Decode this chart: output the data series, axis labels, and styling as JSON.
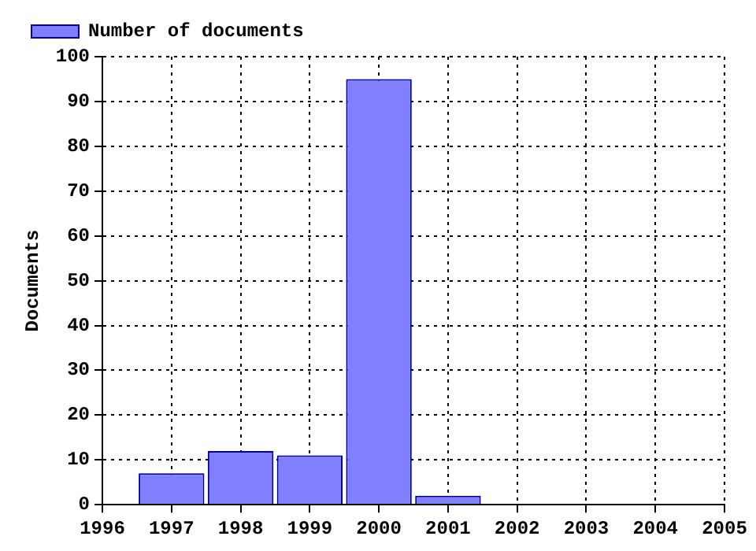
{
  "chart_data": {
    "type": "bar",
    "ylabel": "Documents",
    "x": [
      1997,
      1998,
      1999,
      2000,
      2001
    ],
    "series": [
      {
        "name": "Number of documents",
        "color": "#8080ff",
        "values": [
          7,
          12,
          11,
          95,
          2
        ]
      }
    ],
    "xlim": [
      1996,
      2005
    ],
    "xticks": [
      1996,
      1997,
      1998,
      1999,
      2000,
      2001,
      2002,
      2003,
      2004,
      2005
    ],
    "ylim": [
      0,
      100
    ],
    "yticks": [
      0,
      10,
      20,
      30,
      40,
      50,
      60,
      70,
      80,
      90,
      100
    ],
    "grid": true,
    "legend": "top left"
  }
}
